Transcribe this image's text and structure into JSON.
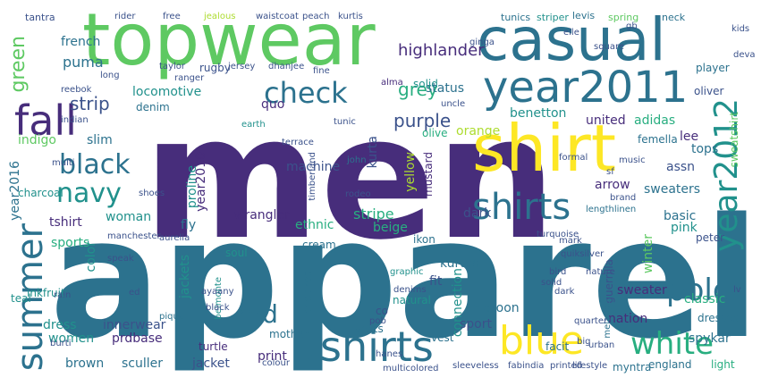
{
  "colors": {
    "background": "#ffffff",
    "c1": "#440154",
    "c2": "#472d7b",
    "c3": "#3b528b",
    "c4": "#2c728e",
    "c5": "#21918c",
    "c6": "#28ae80",
    "c7": "#5ec962",
    "c8": "#addc30",
    "c9": "#fde725"
  },
  "words": {
    "men": "men",
    "apparel": "apparel",
    "topwear": "topwear",
    "casual": "casual",
    "shirt": "shirt",
    "year2011": "year2011",
    "tshirts": "tshirts",
    "fall": "fall",
    "blue": "blue",
    "check": "check",
    "shirts": "shirts",
    "summer": "summer",
    "black": "black",
    "navy": "navy",
    "white": "white",
    "polo": "polo",
    "red": "red",
    "grey": "grey",
    "year2012": "year2012",
    "green": "green",
    "purple": "purple",
    "strip": "strip",
    "highlander": "highlander",
    "french": "french",
    "puma": "puma",
    "locomotive": "locomotive",
    "quo": "quo",
    "status": "status",
    "benetton": "benetton",
    "united": "united",
    "adidas": "adidas",
    "lee": "lee",
    "orange": "orange",
    "femella": "femella",
    "olive": "olive",
    "indigo": "indigo",
    "slim": "slim",
    "year2016": "year2016",
    "kurta": "kurta",
    "machine": "machine",
    "proline": "proline",
    "year2010": "year2010",
    "yellow": "yellow",
    "tops": "tops",
    "assn": "assn",
    "arrow": "arrow",
    "sweaters": "sweaters",
    "woman": "woman",
    "wrangler": "wrangler",
    "stripe": "stripe",
    "beige": "beige",
    "ethnic": "ethnic",
    "tshirt": "tshirt",
    "fly": "fly",
    "basic": "basic",
    "pink": "pink",
    "peter": "peter",
    "winter": "winter",
    "sweatshirt": "sweatshirt",
    "sports": "sports",
    "color": "color",
    "jackets": "jackets",
    "kurtas": "kurtas",
    "sweater": "sweater",
    "fit": "fit",
    "connection": "connection",
    "maroon": "maroon",
    "classic": "classic",
    "dresses": "dresses",
    "dress": "dress",
    "innerwear": "innerwear",
    "women": "women",
    "prdbase": "prdbase",
    "jacket": "jacket",
    "print": "print",
    "sport": "sport",
    "nation": "nation",
    "spykar": "spykar",
    "brown": "brown",
    "sculler": "sculler",
    "light": "light",
    "england": "england",
    "myntra": "myntra",
    "lifestyle": "lifestyle",
    "tunics": "tunics",
    "striper": "striper",
    "levis": "levis",
    "spring": "spring",
    "neck": "neck",
    "rugby": "rugby",
    "alma": "alma",
    "solid": "solid",
    "player": "player",
    "oliver": "oliver",
    "denim": "denim",
    "mustard": "mustard",
    "charcoal": "charcoal",
    "dark": "dark",
    "cream": "cream",
    "turtle": "turtle",
    "mother": "mother",
    "vests": "vests",
    "vest": "vest",
    "facit": "facit",
    "guerrilla": "guerrilla",
    "tantra": "tantra",
    "rider": "rider",
    "free": "free",
    "jealous": "jealous",
    "waistcoat": "waistcoat",
    "peach": "peach",
    "kurtis": "kurtis",
    "tunic": "tunic",
    "earth": "earth",
    "multi": "multi",
    "timberland": "timberland",
    "john": "john",
    "natural": "natural",
    "ikon": "ikon",
    "soul": "soul",
    "checked": "checked",
    "colour": "colour",
    "belmonte": "belmonte",
    "teal": "teal",
    "inkfruit": "inkfruit",
    "graphic": "graphic",
    "lengthlinen": "lengthlinen",
    "pique": "pique",
    "melange": "melange",
    "elle": "elle",
    "square": "square",
    "jersey": "jersey",
    "dhanjee": "dhanjee",
    "terrace": "terrace",
    "taylor": "taylor",
    "reebok": "reebok",
    "indian": "indian",
    "long": "long",
    "ranger": "ranger",
    "deva": "deva",
    "fabindia": "fabindia",
    "sleeveless": "sleeveless",
    "multicolored": "multicolored",
    "printed": "printed",
    "ayaany": "ayaany",
    "black_small": "black",
    "manchester": "manchester",
    "aurelia": "aurelia",
    "speak": "speak",
    "burti": "burti",
    "rain": "rain",
    "quiksilver": "quiksilver",
    "quarter": "quarter",
    "urban": "urban",
    "bird": "bird",
    "co": "co",
    "pob": "pob",
    "ed": "ed",
    "lv": "lv",
    "gb": "gb",
    "sf": "sf",
    "hanes": "hanes",
    "dark_small": "dark",
    "mark": "mark",
    "solid_small": "solid",
    "denims": "denims",
    "uncle": "uncle",
    "big": "big",
    "rodeo": "rodeo",
    "ginga": "ginga",
    "formal": "formal",
    "music": "music",
    "brand": "brand",
    "turquoise": "turquoise",
    "shoes": "shoes",
    "fine": "fine",
    "nature": "nature",
    "kids": "kids"
  }
}
